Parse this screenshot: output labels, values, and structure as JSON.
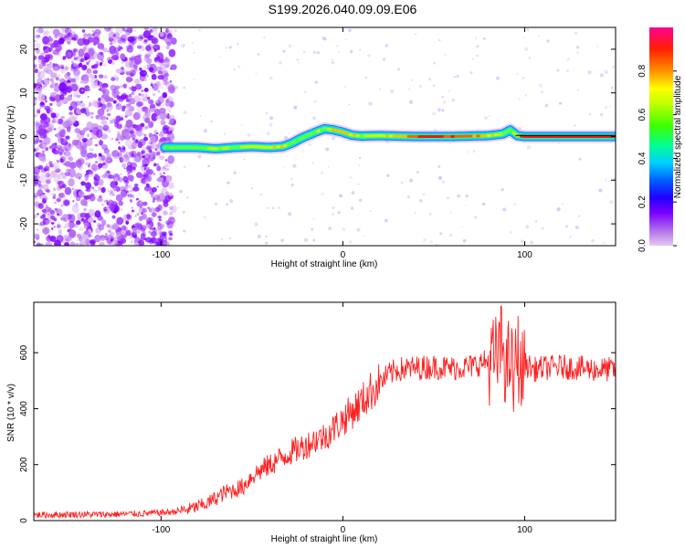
{
  "title": "S199.2026.040.09.09.E06",
  "chart_data": [
    {
      "type": "heatmap",
      "xlabel": "Height of straight line (km)",
      "ylabel": "Frequency (Hz)",
      "xlim": [
        -170,
        150
      ],
      "ylim": [
        -25,
        25
      ],
      "xticks": [
        -100,
        0,
        100
      ],
      "yticks": [
        -20,
        -10,
        0,
        10,
        20
      ],
      "colorbar": {
        "label": "Normalized spectral amplitude",
        "range": [
          0,
          1
        ],
        "ticks": [
          0.0,
          0.2,
          0.4,
          0.6,
          0.8
        ],
        "colors": [
          "#d8a8e8",
          "#7b00ff",
          "#0000ff",
          "#00c8ff",
          "#00ff80",
          "#7fff00",
          "#ffff00",
          "#ff8000",
          "#ff0000",
          "#ff0090"
        ]
      },
      "noise_region_x": [
        -170,
        -93
      ],
      "ridge": {
        "x": [
          -98,
          -90,
          -80,
          -70,
          -60,
          -50,
          -40,
          -33,
          -28,
          -22,
          -15,
          -10,
          -5,
          0,
          5,
          10,
          20,
          30,
          40,
          50,
          60,
          70,
          80,
          88,
          92,
          96,
          100,
          110,
          120,
          130,
          140,
          150
        ],
        "freq": [
          -2.5,
          -2.5,
          -2.5,
          -2.8,
          -2.5,
          -2.3,
          -2.5,
          -2.3,
          -1.5,
          -0.2,
          1.0,
          1.8,
          1.5,
          1.0,
          0.3,
          0.1,
          0.2,
          0.1,
          0.0,
          0.0,
          0.0,
          0.1,
          0.2,
          0.6,
          1.5,
          0.2,
          0.0,
          0.0,
          0.0,
          0.0,
          0.0,
          0.0
        ],
        "amplitude": [
          0.45,
          0.5,
          0.55,
          0.6,
          0.6,
          0.7,
          0.7,
          0.65,
          0.55,
          0.5,
          0.55,
          0.6,
          0.7,
          0.75,
          0.7,
          0.6,
          0.65,
          0.75,
          0.85,
          0.95,
          0.9,
          0.85,
          0.7,
          0.55,
          0.5,
          0.8,
          0.95,
          1.0,
          1.0,
          0.98,
          0.96,
          0.95
        ]
      }
    },
    {
      "type": "line",
      "xlabel": "Height of straight line (km)",
      "ylabel": "SNR (10 * v/v)",
      "xlim": [
        -170,
        150
      ],
      "ylim": [
        0,
        780
      ],
      "xticks": [
        -100,
        0,
        100
      ],
      "yticks": [
        0,
        200,
        400,
        600
      ],
      "color": "#ff2020",
      "series": [
        {
          "x": [
            -170,
            -150,
            -130,
            -110,
            -95,
            -85,
            -80,
            -75,
            -70,
            -65,
            -60,
            -55,
            -50,
            -45,
            -40,
            -35,
            -30,
            -25,
            -20,
            -15,
            -10,
            -5,
            0,
            5,
            10,
            15,
            20,
            25,
            30,
            40,
            50,
            60,
            70,
            75,
            80,
            85,
            88,
            90,
            92,
            94,
            96,
            98,
            100,
            105,
            110,
            120,
            130,
            140,
            150
          ],
          "y": [
            20,
            22,
            22,
            25,
            30,
            40,
            50,
            60,
            80,
            100,
            110,
            120,
            160,
            180,
            200,
            220,
            240,
            255,
            270,
            290,
            300,
            330,
            360,
            390,
            420,
            460,
            490,
            520,
            540,
            545,
            550,
            545,
            550,
            560,
            570,
            580,
            640,
            520,
            600,
            480,
            620,
            500,
            560,
            540,
            545,
            550,
            545,
            540,
            540
          ]
        }
      ]
    }
  ]
}
